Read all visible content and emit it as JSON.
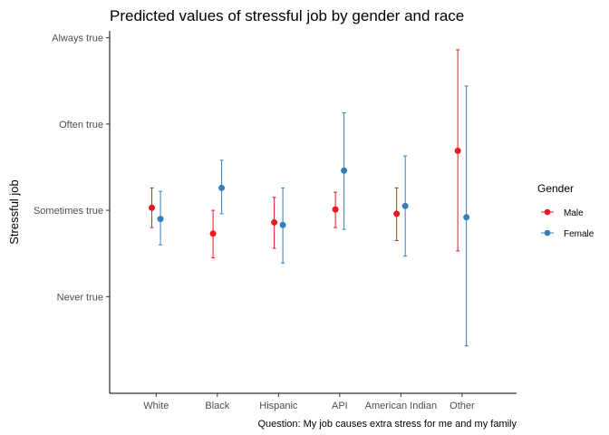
{
  "chart_data": {
    "type": "scatter",
    "title": "Predicted values of stressful job by gender and race",
    "ylabel": "Stressful job",
    "xlabel": "",
    "caption": "Question: My job causes extra stress for me and my family",
    "categories": [
      "White",
      "Black",
      "Hispanic",
      "API",
      "American Indian",
      "Other"
    ],
    "y_ticks": [
      {
        "value": 1,
        "label": "Never true"
      },
      {
        "value": 2,
        "label": "Sometimes true"
      },
      {
        "value": 3,
        "label": "Often true"
      },
      {
        "value": 4,
        "label": "Always true"
      }
    ],
    "ylim": [
      -0.12,
      4.08
    ],
    "grid": false,
    "legend": {
      "title": "Gender",
      "position": "right"
    },
    "series": [
      {
        "name": "Male",
        "color": "#E41A1C",
        "values": [
          2.03,
          1.73,
          1.86,
          2.01,
          1.96,
          2.69
        ],
        "lower": [
          1.8,
          1.45,
          1.56,
          1.8,
          1.65,
          1.53
        ],
        "upper": [
          2.26,
          2.0,
          2.15,
          2.21,
          2.26,
          3.86
        ]
      },
      {
        "name": "Female",
        "color": "#377EB8",
        "values": [
          1.9,
          2.26,
          1.83,
          2.46,
          2.05,
          1.92
        ],
        "lower": [
          1.6,
          1.96,
          1.39,
          1.78,
          1.47,
          0.43
        ],
        "upper": [
          2.22,
          2.58,
          2.26,
          3.13,
          2.63,
          3.44
        ]
      }
    ]
  }
}
